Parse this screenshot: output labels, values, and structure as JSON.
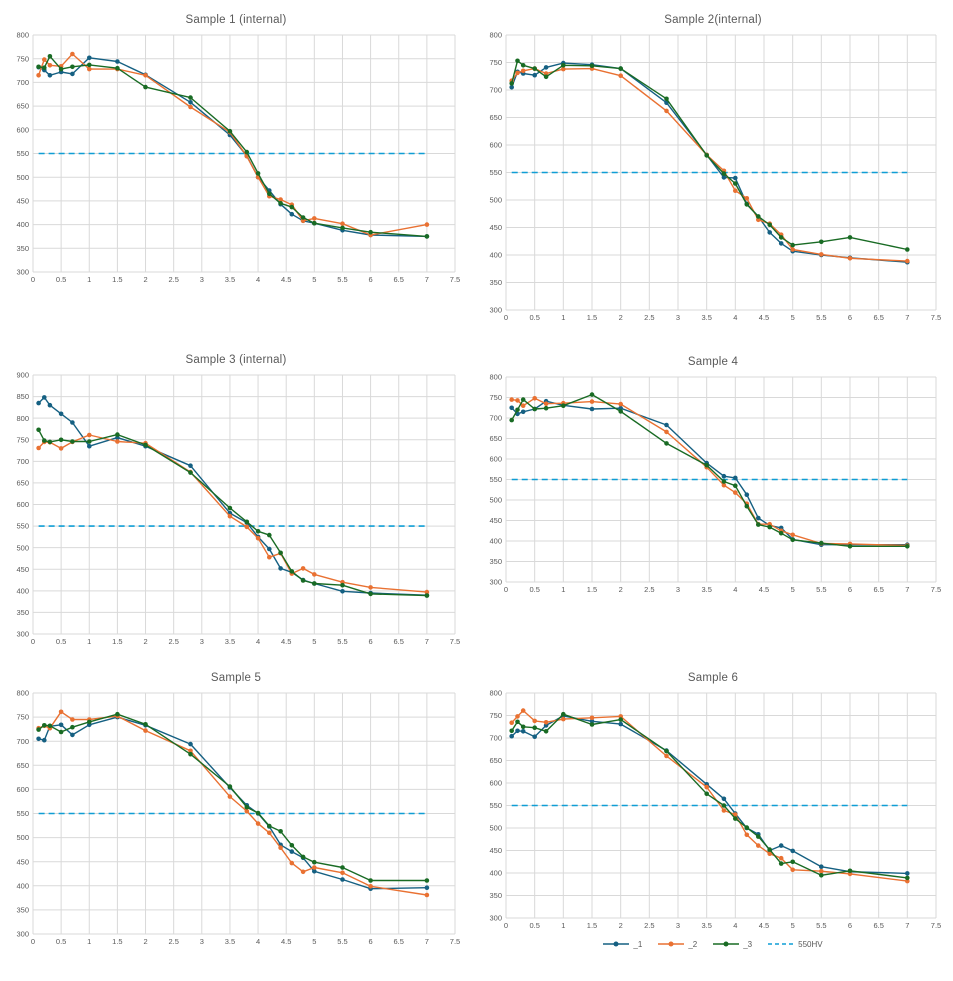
{
  "styles": {
    "background": "#FFFFFF",
    "grid_color": "#D9D9D9",
    "tick_color": "#595959",
    "title_color": "#595959",
    "series_blue": "#156082",
    "series_orange": "#E97132",
    "series_green": "#196B24",
    "ref_blue": "#0F9ED5"
  },
  "chart_data": [
    {
      "type": "line",
      "title": "Sample 1 (internal)",
      "xlabel": "",
      "ylabel": "",
      "xlim": [
        0,
        7.5
      ],
      "xtick_step": 0.5,
      "ylim": [
        300,
        800
      ],
      "ytick_step": 50,
      "grid": true,
      "legend": "none",
      "x": [
        0.1,
        0.2,
        0.3,
        0.5,
        0.7,
        1,
        1.5,
        2,
        2.8,
        3.5,
        3.8,
        4,
        4.2,
        4.4,
        4.6,
        4.8,
        5,
        5.5,
        6,
        7
      ],
      "series": [
        {
          "name": "_1",
          "color": "#156082",
          "values": [
            732,
            726,
            715,
            722,
            718,
            752,
            744,
            716,
            658,
            589,
            545,
            500,
            472,
            443,
            422,
            408,
            403,
            388,
            378,
            375
          ]
        },
        {
          "name": "_2",
          "color": "#E97132",
          "values": [
            715,
            748,
            736,
            734,
            760,
            728,
            728,
            715,
            648,
            595,
            544,
            500,
            460,
            453,
            442,
            408,
            413,
            402,
            378,
            400
          ]
        },
        {
          "name": "_3",
          "color": "#196B24",
          "values": [
            733,
            731,
            755,
            728,
            733,
            737,
            730,
            690,
            668,
            597,
            553,
            508,
            465,
            445,
            437,
            415,
            403,
            393,
            384,
            375
          ]
        }
      ],
      "ref_line": {
        "label": "550HV",
        "y": 550,
        "color": "#0F9ED5",
        "style": "dashed",
        "x_start": 0.1,
        "x_end": 7
      }
    },
    {
      "type": "line",
      "title": "Sample 2(internal)",
      "xlabel": "",
      "ylabel": "",
      "xlim": [
        0,
        7.5
      ],
      "xtick_step": 0.5,
      "ylim": [
        300,
        800
      ],
      "ytick_step": 50,
      "grid": true,
      "legend": "none",
      "x": [
        0.1,
        0.2,
        0.3,
        0.5,
        0.7,
        1,
        1.5,
        2,
        2.8,
        3.5,
        3.8,
        4,
        4.2,
        4.4,
        4.6,
        4.8,
        5,
        5.5,
        6,
        7
      ],
      "series": [
        {
          "name": "_1",
          "color": "#156082",
          "values": [
            705,
            733,
            730,
            727,
            741,
            749,
            746,
            739,
            677,
            582,
            541,
            540,
            493,
            470,
            441,
            421,
            407,
            400,
            395,
            387
          ]
        },
        {
          "name": "_2",
          "color": "#E97132",
          "values": [
            717,
            731,
            735,
            739,
            730,
            738,
            739,
            726,
            662,
            582,
            553,
            517,
            503,
            464,
            457,
            437,
            410,
            401,
            394,
            389
          ]
        },
        {
          "name": "_3",
          "color": "#196B24",
          "values": [
            712,
            753,
            745,
            739,
            724,
            745,
            744,
            739,
            684,
            581,
            548,
            530,
            492,
            470,
            455,
            432,
            418,
            424,
            432,
            410
          ]
        }
      ],
      "ref_line": {
        "label": "550HV",
        "y": 550,
        "color": "#0F9ED5",
        "style": "dashed",
        "x_start": 0.1,
        "x_end": 7
      }
    },
    {
      "type": "line",
      "title": "Sample 3 (internal)",
      "xlabel": "",
      "ylabel": "",
      "xlim": [
        0,
        7.5
      ],
      "xtick_step": 0.5,
      "ylim": [
        300,
        900
      ],
      "ytick_step": 50,
      "grid": true,
      "legend": "none",
      "x": [
        0.1,
        0.2,
        0.3,
        0.5,
        0.7,
        1,
        1.5,
        2,
        2.8,
        3.5,
        3.8,
        4,
        4.2,
        4.4,
        4.6,
        4.8,
        5,
        5.5,
        6,
        7
      ],
      "series": [
        {
          "name": "_1",
          "color": "#156082",
          "values": [
            835,
            848,
            830,
            810,
            790,
            735,
            755,
            735,
            690,
            580,
            558,
            525,
            497,
            452,
            443,
            425,
            417,
            399,
            395,
            390
          ]
        },
        {
          "name": "_2",
          "color": "#E97132",
          "values": [
            731,
            745,
            744,
            730,
            745,
            761,
            746,
            742,
            675,
            573,
            548,
            522,
            478,
            487,
            440,
            452,
            438,
            420,
            408,
            397
          ]
        },
        {
          "name": "_3",
          "color": "#196B24",
          "values": [
            773,
            748,
            745,
            750,
            746,
            746,
            762,
            738,
            674,
            592,
            560,
            538,
            529,
            488,
            445,
            424,
            417,
            413,
            393,
            389
          ]
        }
      ],
      "ref_line": {
        "label": "550HV",
        "y": 550,
        "color": "#0F9ED5",
        "style": "dashed",
        "x_start": 0.1,
        "x_end": 7
      }
    },
    {
      "type": "line",
      "title": "Sample 4",
      "xlabel": "",
      "ylabel": "",
      "xlim": [
        0,
        7.5
      ],
      "xtick_step": 0.5,
      "ylim": [
        300,
        800
      ],
      "ytick_step": 50,
      "grid": true,
      "legend": "none",
      "x": [
        0.1,
        0.2,
        0.3,
        0.5,
        0.7,
        1,
        1.5,
        2,
        2.8,
        3.5,
        3.8,
        4,
        4.2,
        4.4,
        4.6,
        4.8,
        5,
        5.5,
        6,
        7
      ],
      "series": [
        {
          "name": "_1",
          "color": "#156082",
          "values": [
            725,
            710,
            715,
            722,
            741,
            731,
            722,
            724,
            683,
            590,
            558,
            554,
            513,
            456,
            438,
            432,
            404,
            391,
            391,
            391
          ]
        },
        {
          "name": "_2",
          "color": "#E97132",
          "values": [
            745,
            743,
            730,
            748,
            735,
            736,
            740,
            734,
            666,
            580,
            536,
            518,
            491,
            441,
            441,
            425,
            415,
            394,
            393,
            389
          ]
        },
        {
          "name": "_3",
          "color": "#196B24",
          "values": [
            695,
            720,
            745,
            722,
            724,
            730,
            757,
            716,
            638,
            585,
            545,
            535,
            485,
            440,
            434,
            419,
            403,
            395,
            387,
            387
          ]
        }
      ],
      "ref_line": {
        "label": "550HV",
        "y": 550,
        "color": "#0F9ED5",
        "style": "dashed",
        "x_start": 0.1,
        "x_end": 7
      }
    },
    {
      "type": "line",
      "title": "Sample 5",
      "xlabel": "",
      "ylabel": "",
      "xlim": [
        0,
        7.5
      ],
      "xtick_step": 0.5,
      "ylim": [
        300,
        800
      ],
      "ytick_step": 50,
      "grid": true,
      "legend": "none",
      "x": [
        0.1,
        0.2,
        0.3,
        0.5,
        0.7,
        1,
        1.5,
        2,
        2.8,
        3.5,
        3.8,
        4,
        4.2,
        4.4,
        4.6,
        4.8,
        5,
        5.5,
        6,
        7
      ],
      "series": [
        {
          "name": "_1",
          "color": "#156082",
          "values": [
            705,
            702,
            731,
            734,
            713,
            734,
            750,
            733,
            694,
            604,
            567,
            550,
            523,
            485,
            471,
            458,
            430,
            413,
            394,
            396
          ]
        },
        {
          "name": "_2",
          "color": "#E97132",
          "values": [
            727,
            732,
            727,
            761,
            745,
            745,
            752,
            722,
            680,
            585,
            555,
            529,
            510,
            479,
            447,
            429,
            438,
            427,
            399,
            381
          ]
        },
        {
          "name": "_3",
          "color": "#196B24",
          "values": [
            724,
            733,
            732,
            719,
            729,
            740,
            756,
            735,
            673,
            606,
            563,
            551,
            524,
            513,
            484,
            460,
            449,
            438,
            411,
            411
          ]
        }
      ],
      "ref_line": {
        "label": "550HV",
        "y": 550,
        "color": "#0F9ED5",
        "style": "dashed",
        "x_start": 0.1,
        "x_end": 7
      }
    },
    {
      "type": "line",
      "title": "Sample 6",
      "xlabel": "",
      "ylabel": "",
      "xlim": [
        0,
        7.5
      ],
      "xtick_step": 0.5,
      "ylim": [
        300,
        800
      ],
      "ytick_step": 50,
      "grid": true,
      "legend": "bottom",
      "x": [
        0.1,
        0.2,
        0.3,
        0.5,
        0.7,
        1,
        1.5,
        2,
        2.8,
        3.5,
        3.8,
        4,
        4.2,
        4.4,
        4.6,
        4.8,
        5,
        5.5,
        6,
        7
      ],
      "series": [
        {
          "name": "_1",
          "color": "#156082",
          "values": [
            704,
            716,
            715,
            703,
            728,
            749,
            737,
            731,
            672,
            597,
            565,
            532,
            500,
            486,
            450,
            461,
            449,
            414,
            403,
            399
          ]
        },
        {
          "name": "_2",
          "color": "#E97132",
          "values": [
            734,
            748,
            761,
            738,
            735,
            742,
            745,
            748,
            660,
            591,
            539,
            530,
            485,
            461,
            443,
            433,
            407,
            404,
            398,
            382
          ]
        },
        {
          "name": "_3",
          "color": "#196B24",
          "values": [
            716,
            736,
            725,
            723,
            715,
            753,
            730,
            741,
            671,
            576,
            550,
            521,
            501,
            481,
            452,
            421,
            425,
            395,
            405,
            389
          ]
        }
      ],
      "ref_line": {
        "label": "550HV",
        "y": 550,
        "color": "#0F9ED5",
        "style": "dashed",
        "x_start": 0.1,
        "x_end": 7
      }
    }
  ]
}
